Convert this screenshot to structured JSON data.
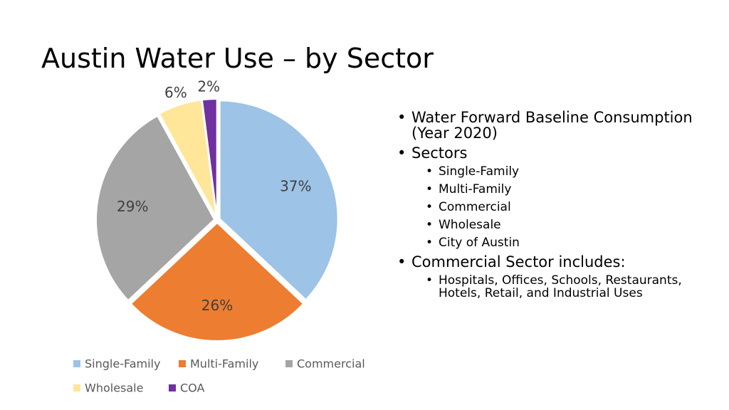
{
  "slide": {
    "title": "Austin Water Use – by Sector",
    "bullets": [
      {
        "text": "Water Forward Baseline Consumption (Year 2020)",
        "sub": []
      },
      {
        "text": "Sectors",
        "sub": [
          "Single-Family",
          "Multi-Family",
          "Commercial",
          "Wholesale",
          "City of Austin"
        ]
      },
      {
        "text": "Commercial Sector includes:",
        "sub": [
          "Hospitals, Offices, Schools, Restaurants, Hotels, Retail, and Industrial Uses"
        ]
      }
    ]
  },
  "chart_data": {
    "type": "pie",
    "title": "",
    "legend_position": "bottom",
    "slices": [
      {
        "name": "Single-Family",
        "value": 37,
        "label": "37%",
        "color": "#9DC3E6"
      },
      {
        "name": "Multi-Family",
        "value": 26,
        "label": "26%",
        "color": "#ED7D31"
      },
      {
        "name": "Commercial",
        "value": 29,
        "label": "29%",
        "color": "#A5A5A5"
      },
      {
        "name": "Wholesale",
        "value": 6,
        "label": "6%",
        "color": "#FFE699"
      },
      {
        "name": "COA",
        "value": 2,
        "label": "2%",
        "color": "#7030A0"
      }
    ]
  }
}
